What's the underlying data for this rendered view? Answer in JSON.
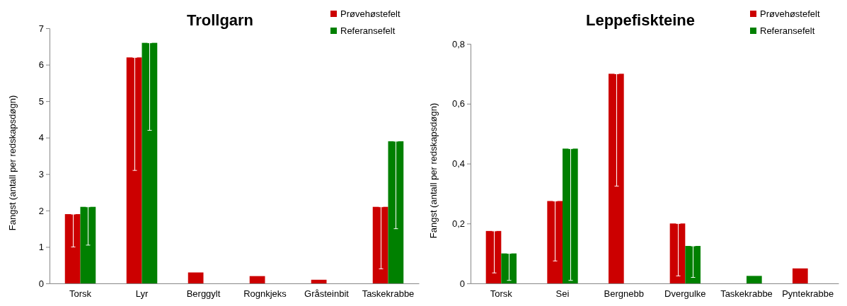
{
  "chart_data": [
    {
      "type": "bar",
      "title": "Trollgarn",
      "ylabel": "Fangst  (antall per redskapsdøgn)",
      "categories": [
        "Torsk",
        "Lyr",
        "Berggylt",
        "Rognkjeks",
        "Gråsteinbit",
        "Taskekrabbe"
      ],
      "ylim": [
        0,
        7
      ],
      "yticks": [
        0,
        1,
        2,
        3,
        4,
        5,
        6,
        7
      ],
      "legend": "top right",
      "series": [
        {
          "name": "Prøvehøstefelt",
          "color": "#cc0000",
          "values": [
            1.9,
            6.2,
            0.3,
            0.2,
            0.1,
            2.1
          ],
          "errors": [
            [
              1.0,
              1.9
            ],
            [
              3.1,
              6.2
            ],
            null,
            null,
            null,
            [
              0.4,
              2.1
            ]
          ]
        },
        {
          "name": "Referansefelt",
          "color": "#008000",
          "values": [
            2.1,
            6.6,
            null,
            null,
            null,
            3.9
          ],
          "errors": [
            [
              1.05,
              2.1
            ],
            [
              4.2,
              6.6
            ],
            null,
            null,
            null,
            [
              1.5,
              3.9
            ]
          ]
        }
      ]
    },
    {
      "type": "bar",
      "title": "Leppefiskteine",
      "ylabel": "Fangst  (antall per redskapsdøgn)",
      "categories": [
        "Torsk",
        "Sei",
        "Bergnebb",
        "Dvergulke",
        "Taskekrabbe",
        "Pyntekrabbe"
      ],
      "ylim": [
        0,
        0.8
      ],
      "yticks": [
        {
          "value": 0,
          "label": "0"
        },
        {
          "value": 0.2,
          "label": "0,2"
        },
        {
          "value": 0.4,
          "label": "0,4"
        },
        {
          "value": 0.6,
          "label": "0,6"
        },
        {
          "value": 0.8,
          "label": "0,8"
        }
      ],
      "legend": "top right",
      "series": [
        {
          "name": "Prøvehøstefelt",
          "color": "#cc0000",
          "values": [
            0.175,
            0.275,
            0.7,
            0.2,
            null,
            0.05
          ],
          "errors": [
            [
              0.035,
              0.175
            ],
            [
              0.075,
              0.275
            ],
            [
              0.325,
              0.7
            ],
            [
              0.025,
              0.2
            ],
            null,
            null
          ]
        },
        {
          "name": "Referansefelt",
          "color": "#008000",
          "values": [
            0.1,
            0.45,
            null,
            0.125,
            0.025,
            null
          ],
          "errors": [
            [
              0.01,
              0.1
            ],
            [
              0.01,
              0.45
            ],
            null,
            [
              0.02,
              0.125
            ],
            null,
            null
          ]
        }
      ]
    }
  ]
}
